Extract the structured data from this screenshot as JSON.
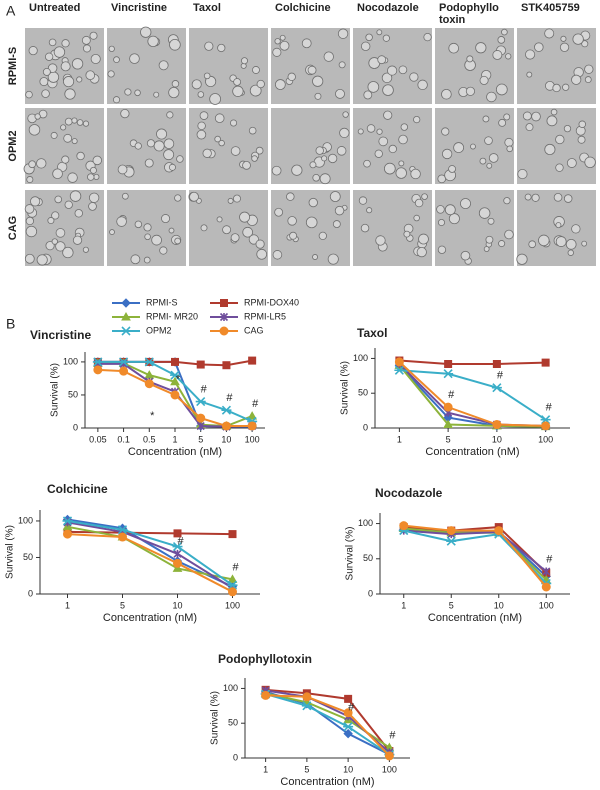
{
  "panel_a": {
    "label": "A",
    "columns": [
      "Untreated",
      "Vincristine",
      "Taxol",
      "Colchicine",
      "Nocodazole",
      "Podophyllo toxin",
      "STK405759"
    ],
    "rows": [
      "RPMI-S",
      "OPM2",
      "CAG"
    ]
  },
  "panel_b_label": "B",
  "legend": [
    {
      "name": "RPMI-S",
      "color": "#3b6fc4"
    },
    {
      "name": "RPMI-DOX40",
      "color": "#b03a2e"
    },
    {
      "name": "RPMI- MR20",
      "color": "#8db33a"
    },
    {
      "name": "RPMI-LR5",
      "color": "#6f4e9c"
    },
    {
      "name": "OPM2",
      "color": "#3aaec8"
    },
    {
      "name": "CAG",
      "color": "#f08a2a"
    }
  ],
  "chart_data": [
    {
      "type": "line",
      "title": "Vincristine",
      "y_label": "Survival (%)",
      "x_label": "Concentration (nM)",
      "categories": [
        "0.05",
        "0.1",
        "0.5",
        "1",
        "5",
        "10",
        "100"
      ],
      "ylim": [
        0,
        115
      ],
      "yticks": [
        0,
        50,
        100
      ],
      "series": [
        {
          "values": [
            100,
            100,
            100,
            100,
            3,
            2,
            2
          ]
        },
        {
          "values": [
            100,
            100,
            100,
            100,
            96,
            95,
            102
          ]
        },
        {
          "values": [
            98,
            98,
            80,
            70,
            5,
            3,
            18
          ]
        },
        {
          "values": [
            97,
            97,
            70,
            55,
            3,
            2,
            3
          ]
        },
        {
          "values": [
            100,
            100,
            100,
            80,
            40,
            27,
            10
          ]
        },
        {
          "values": [
            88,
            86,
            67,
            50,
            15,
            3,
            3
          ]
        }
      ],
      "annotations": [
        {
          "text": "*",
          "category": "0.5"
        },
        {
          "text": "*",
          "category": "1"
        },
        {
          "text": "#",
          "category": "5"
        },
        {
          "text": "#",
          "category": "10"
        },
        {
          "text": "#",
          "category": "100"
        }
      ]
    },
    {
      "type": "line",
      "title": "Taxol",
      "y_label": "Survival (%)",
      "x_label": "Concentration (nM)",
      "categories": [
        "1",
        "5",
        "10",
        "100"
      ],
      "ylim": [
        0,
        115
      ],
      "yticks": [
        0,
        50,
        100
      ],
      "series": [
        {
          "values": [
            90,
            15,
            3,
            2
          ]
        },
        {
          "values": [
            97,
            92,
            92,
            94
          ]
        },
        {
          "values": [
            90,
            5,
            3,
            2
          ]
        },
        {
          "values": [
            92,
            22,
            5,
            3
          ]
        },
        {
          "values": [
            83,
            78,
            58,
            12
          ]
        },
        {
          "values": [
            95,
            30,
            5,
            3
          ]
        }
      ],
      "annotations": [
        {
          "text": "#",
          "category": "5"
        },
        {
          "text": "#",
          "category": "10"
        },
        {
          "text": "#",
          "category": "100"
        }
      ]
    },
    {
      "type": "line",
      "title": "Colchicine",
      "y_label": "Survival (%)",
      "x_label": "Concentration (nM)",
      "categories": [
        "1",
        "5",
        "10",
        "100"
      ],
      "ylim": [
        0,
        115
      ],
      "yticks": [
        0,
        50,
        100
      ],
      "series": [
        {
          "values": [
            102,
            90,
            45,
            10
          ]
        },
        {
          "values": [
            85,
            84,
            83,
            82
          ]
        },
        {
          "values": [
            92,
            78,
            35,
            20
          ]
        },
        {
          "values": [
            98,
            85,
            55,
            8
          ]
        },
        {
          "values": [
            100,
            88,
            65,
            12
          ]
        },
        {
          "values": [
            82,
            78,
            42,
            3
          ]
        }
      ],
      "annotations": [
        {
          "text": "#",
          "category": "10"
        },
        {
          "text": "#",
          "category": "100"
        }
      ]
    },
    {
      "type": "line",
      "title": "Nocodazole",
      "y_label": "Survival (%)",
      "x_label": "Concentration (nM)",
      "categories": [
        "1",
        "5",
        "10",
        "100"
      ],
      "ylim": [
        0,
        115
      ],
      "yticks": [
        0,
        50,
        100
      ],
      "series": [
        {
          "values": [
            92,
            88,
            88,
            25
          ]
        },
        {
          "values": [
            95,
            90,
            95,
            30
          ]
        },
        {
          "values": [
            93,
            87,
            87,
            20
          ]
        },
        {
          "values": [
            90,
            85,
            88,
            32
          ]
        },
        {
          "values": [
            90,
            75,
            85,
            15
          ]
        },
        {
          "values": [
            97,
            90,
            90,
            10
          ]
        }
      ],
      "annotations": [
        {
          "text": "#",
          "category": "100"
        }
      ]
    },
    {
      "type": "line",
      "title": "Podophyllotoxin",
      "y_label": "Survival (%)",
      "x_label": "Concentration (nM)",
      "categories": [
        "1",
        "5",
        "10",
        "100"
      ],
      "ylim": [
        0,
        115
      ],
      "yticks": [
        0,
        50,
        100
      ],
      "series": [
        {
          "values": [
            95,
            78,
            35,
            5
          ]
        },
        {
          "values": [
            98,
            93,
            85,
            10
          ]
        },
        {
          "values": [
            93,
            80,
            55,
            15
          ]
        },
        {
          "values": [
            97,
            88,
            60,
            8
          ]
        },
        {
          "values": [
            92,
            75,
            45,
            5
          ]
        },
        {
          "values": [
            90,
            88,
            65,
            3
          ]
        }
      ],
      "annotations": [
        {
          "text": "#",
          "category": "10"
        },
        {
          "text": "#",
          "category": "100"
        }
      ]
    }
  ]
}
